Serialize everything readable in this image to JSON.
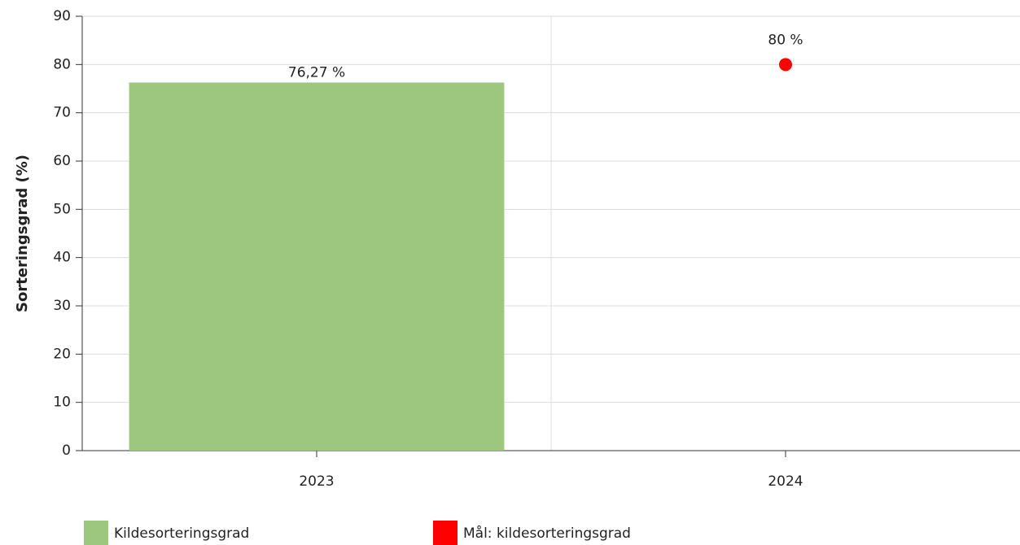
{
  "chart_data": {
    "type": "bar",
    "y_label": "Sorteringsgrad (%)",
    "categories": [
      "2023",
      "2024"
    ],
    "series": [
      {
        "name": "Kildesorteringsgrad",
        "type": "bar",
        "color": "#9dc67f",
        "values": [
          76.27,
          null
        ],
        "value_labels": [
          "76,27 %",
          null
        ]
      },
      {
        "name": "Mål: kildesorteringsgrad",
        "type": "scatter",
        "color": "#ff0000",
        "values": [
          null,
          80
        ],
        "value_labels": [
          null,
          "80 %"
        ]
      }
    ],
    "ylim": [
      0,
      90
    ],
    "yticks": [
      0,
      10,
      20,
      30,
      40,
      50,
      60,
      70,
      80,
      90
    ],
    "grid": true
  }
}
